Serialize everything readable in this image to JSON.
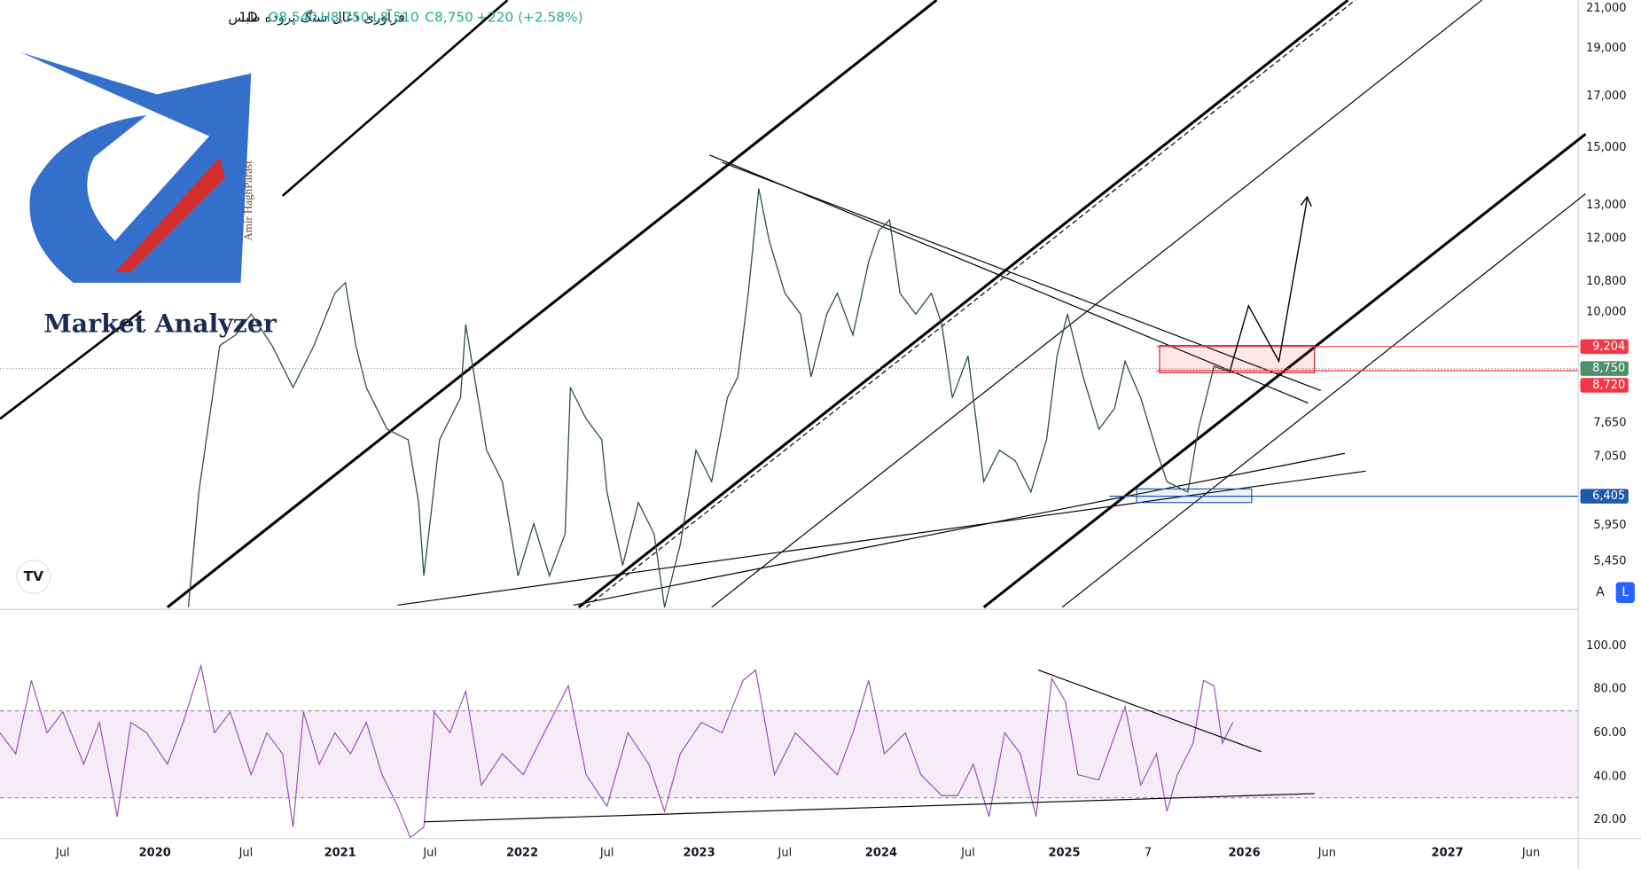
{
  "header": {
    "symbol": "فرآوری ذغال سنگ پروده طبس",
    "interval": "1D",
    "open": "O8,540",
    "high": "H8,750",
    "low": "L8,510",
    "close": "C8,750",
    "change": "+220 (+2.58%)"
  },
  "logo": {
    "title": "Market Analyzer",
    "author": "Amir HaghParast"
  },
  "price_axis": {
    "labels": [
      "21,000",
      "19,000",
      "17,000",
      "15,000",
      "13,000",
      "12,000",
      "10,800",
      "10,000",
      "7,650",
      "7,050",
      "5,950",
      "5,450"
    ]
  },
  "price_markers": [
    {
      "label": "9,204",
      "color": "#f23645"
    },
    {
      "label": "8,750",
      "color": "#4f8f6a"
    },
    {
      "label": "8,720",
      "color": "#f23645"
    },
    {
      "label": "6,405",
      "color": "#1e5aa8"
    }
  ],
  "rsi_axis": {
    "labels": [
      "100.00",
      "80.00",
      "60.00",
      "40.00",
      "20.00"
    ]
  },
  "time_axis": {
    "labels": [
      "Jul",
      "2020",
      "Jul",
      "2021",
      "Jul",
      "2022",
      "Jul",
      "2023",
      "Jul",
      "2024",
      "Jul",
      "2025",
      "7",
      "2026",
      "Jun",
      "2027",
      "Jun"
    ]
  },
  "scale_buttons": [
    "A",
    "L"
  ]
}
